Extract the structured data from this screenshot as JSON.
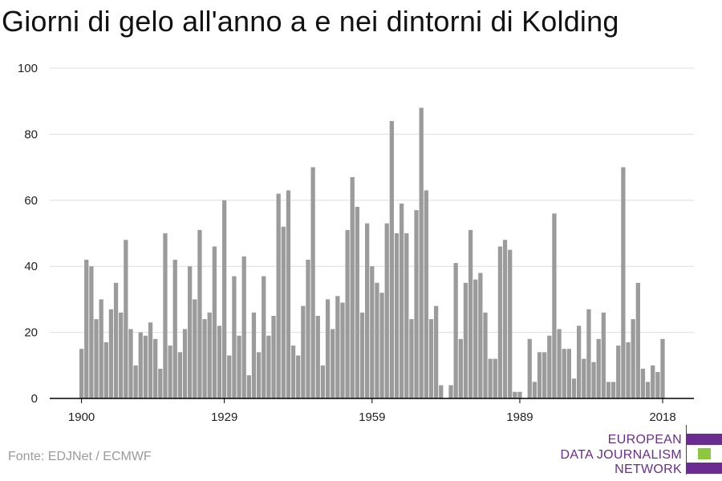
{
  "title": "Giorni di gelo all'anno a e nei dintorni di Kolding",
  "source": "Fonte: EDJNet / ECMWF",
  "logo": {
    "line1": "EUROPEAN",
    "line2": "DATA JOURNALISM",
    "line3": "NETWORK",
    "colors": {
      "purple": "#6a2c91",
      "green": "#8dc63f"
    }
  },
  "colors": {
    "bar": "#9b9b9b",
    "grid": "#dddddd",
    "axis": "#000000"
  },
  "chart_data": {
    "type": "bar",
    "title": "Giorni di gelo all'anno a e nei dintorni di Kolding",
    "xlabel": "",
    "ylabel": "",
    "ylim": [
      0,
      100
    ],
    "yticks": [
      0,
      20,
      40,
      60,
      80,
      100
    ],
    "xticks": [
      1900,
      1929,
      1959,
      1989,
      2018
    ],
    "grid": true,
    "x_start": 1900,
    "x_end": 2018,
    "values": [
      15,
      42,
      40,
      24,
      30,
      17,
      27,
      35,
      26,
      48,
      21,
      10,
      20,
      19,
      23,
      18,
      9,
      50,
      16,
      42,
      14,
      21,
      40,
      30,
      51,
      24,
      26,
      46,
      22,
      60,
      13,
      37,
      19,
      43,
      7,
      26,
      14,
      37,
      19,
      25,
      62,
      52,
      63,
      16,
      13,
      28,
      42,
      70,
      25,
      10,
      30,
      21,
      31,
      29,
      51,
      67,
      58,
      26,
      53,
      40,
      35,
      32,
      53,
      84,
      50,
      59,
      50,
      24,
      57,
      88,
      63,
      24,
      28,
      4,
      0,
      4,
      41,
      18,
      35,
      51,
      36,
      38,
      26,
      12,
      12,
      46,
      48,
      45,
      2,
      2,
      0,
      18,
      5,
      14,
      14,
      19,
      56,
      21,
      15,
      15,
      6,
      22,
      12,
      27,
      11,
      18,
      26,
      5,
      5,
      16,
      70,
      17,
      24,
      35,
      9,
      5,
      10,
      8,
      18
    ]
  }
}
